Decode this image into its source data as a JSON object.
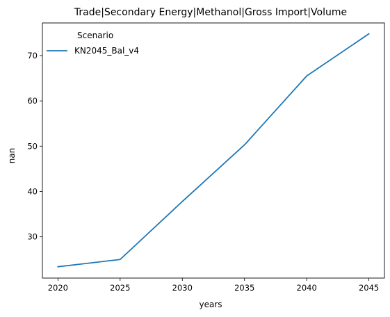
{
  "chart_data": {
    "type": "line",
    "title": "Trade|Secondary Energy|Methanol|Gross Import|Volume",
    "xlabel": "years",
    "ylabel": "nan",
    "x": [
      2020,
      2025,
      2030,
      2035,
      2040,
      2045
    ],
    "xlim": [
      2018.75,
      2046.25
    ],
    "ylim": [
      20.9,
      77.2
    ],
    "xticks": [
      "2020",
      "2025",
      "2030",
      "2035",
      "2040",
      "2045"
    ],
    "yticks": [
      "30",
      "40",
      "50",
      "60",
      "70"
    ],
    "grid": false,
    "legend": {
      "title": "Scenario",
      "placement": "upper-left"
    },
    "series": [
      {
        "name": "KN2045_Bal_v4",
        "color": "#1f77b4",
        "values": [
          23.4,
          25.0,
          37.8,
          50.3,
          65.5,
          74.8
        ]
      }
    ]
  }
}
